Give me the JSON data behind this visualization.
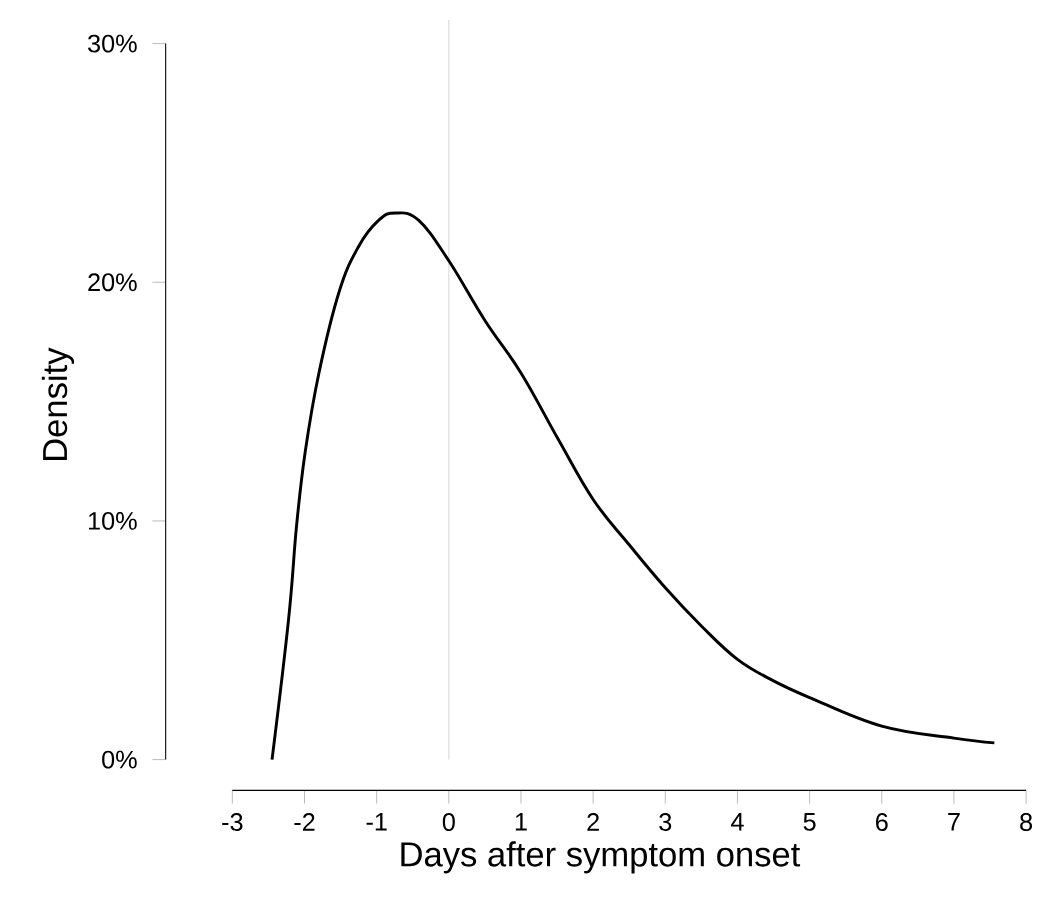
{
  "chart_data": {
    "type": "line",
    "xlabel": "Days after symptom onset",
    "ylabel": "Density",
    "x": [
      -2.45,
      -2.22,
      -2.11,
      -1.99,
      -1.8,
      -1.52,
      -1.25,
      -0.97,
      -0.74,
      -0.42,
      0.0,
      0.5,
      1.0,
      1.52,
      2.0,
      2.5,
      3.0,
      3.5,
      4.0,
      4.5,
      5.0,
      6.0,
      7.0,
      7.56
    ],
    "series": [
      {
        "color": "#000000",
        "values": [
          0,
          5.9,
          9.8,
          12.9,
          16.2,
          19.6,
          21.5,
          22.6,
          22.9,
          22.6,
          20.9,
          18.4,
          16.2,
          13.4,
          10.9,
          9.0,
          7.2,
          5.6,
          4.2,
          3.3,
          2.6,
          1.4,
          0.9,
          0.7
        ]
      }
    ],
    "xlim": [
      -3,
      8
    ],
    "xticks": [
      -3,
      -2,
      -1,
      0,
      1,
      2,
      3,
      4,
      5,
      6,
      7,
      8
    ],
    "ylim": [
      0,
      30
    ],
    "yticks": [
      {
        "value": 0,
        "label": "0%"
      },
      {
        "value": 10,
        "label": "10%"
      },
      {
        "value": 20,
        "label": "20%"
      },
      {
        "value": 30,
        "label": "30%"
      }
    ],
    "ref_lines": [
      {
        "axis": "x",
        "value": 0,
        "color": "#d9d9d9"
      }
    ],
    "grid": false,
    "marker": "none",
    "line_style": "solid"
  }
}
